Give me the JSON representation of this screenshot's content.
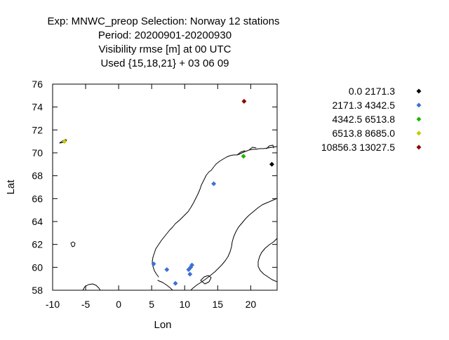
{
  "chart_data": {
    "type": "scatter",
    "title_lines": [
      "Exp: MNWC_preop   Selection: Norway     12 stations",
      "Period: 20200901-20200930",
      "Visibility rmse [m] at  00 UTC",
      "Used {15,18,21} + 03 06 09"
    ],
    "xlabel": "Lon",
    "ylabel": "Lat",
    "xlim": [
      -10,
      24
    ],
    "ylim": [
      58,
      76
    ],
    "xticks": [
      -10,
      -5,
      0,
      5,
      10,
      15,
      20
    ],
    "yticks": [
      58,
      60,
      62,
      64,
      66,
      68,
      70,
      72,
      74,
      76
    ],
    "grid": false,
    "legend_position": "right",
    "series": [
      {
        "name": "0.0 2171.3",
        "color": "#000000",
        "points": [
          [
            23.2,
            69.0
          ]
        ]
      },
      {
        "name": "2171.3 4342.5",
        "color": "#3d6fd6",
        "points": [
          [
            14.4,
            67.3
          ],
          [
            5.3,
            60.3
          ],
          [
            7.3,
            59.8
          ],
          [
            8.6,
            58.6
          ],
          [
            10.6,
            59.8
          ],
          [
            10.9,
            60.0
          ],
          [
            11.1,
            60.2
          ],
          [
            10.8,
            59.4
          ]
        ]
      },
      {
        "name": "4342.5 6513.8",
        "color": "#1fb400",
        "points": [
          [
            18.9,
            69.7
          ]
        ]
      },
      {
        "name": "6513.8 8685.0",
        "color": "#c8c800",
        "points": [
          [
            -8.2,
            71.0
          ]
        ]
      },
      {
        "name": "10856.3 13027.5",
        "color": "#8b0000",
        "points": [
          [
            19.0,
            74.5
          ]
        ]
      }
    ]
  }
}
